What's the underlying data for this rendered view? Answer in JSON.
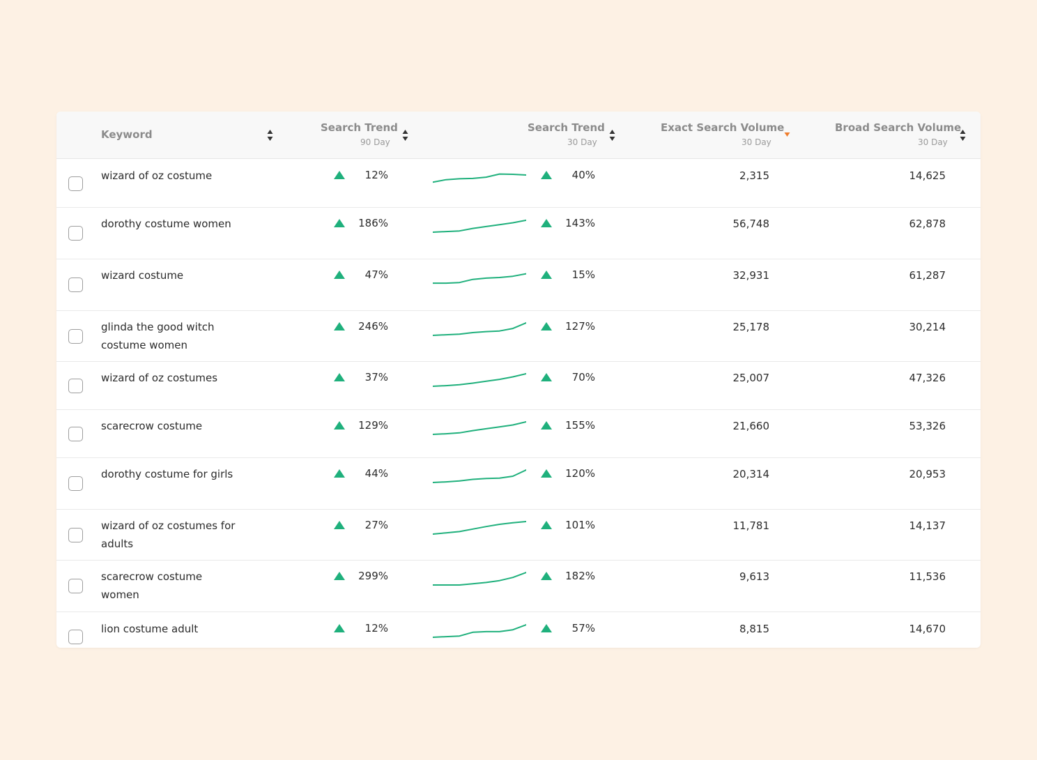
{
  "colors": {
    "accent_green": "#1fb07c",
    "sort_active": "#ef7d2c",
    "background": "#fdf1e4"
  },
  "header": {
    "keyword": "Keyword",
    "trend90": {
      "title": "Search Trend",
      "sub": "90 Day"
    },
    "trend30": {
      "title": "Search Trend",
      "sub": "30 Day"
    },
    "exact": {
      "title": "Exact Search Volume",
      "sub": "30 Day"
    },
    "broad": {
      "title": "Broad Search Volume",
      "sub": "30 Day"
    },
    "sort_icons": [
      "sort-both-icon",
      "sort-both-icon",
      "sort-both-icon",
      "sort-desc-active-icon",
      "sort-both-icon"
    ]
  },
  "rows": [
    {
      "keyword": "wizard of oz costume",
      "trend90": "12%",
      "trend30": "40%",
      "exact": "2,315",
      "broad": "14,625",
      "spark": [
        0.15,
        0.35,
        0.42,
        0.45,
        0.55,
        0.8,
        0.78,
        0.72
      ]
    },
    {
      "keyword": "dorothy costume women",
      "trend90": "186%",
      "trend30": "143%",
      "exact": "56,748",
      "broad": "62,878",
      "spark": [
        0.0,
        0.05,
        0.1,
        0.3,
        0.45,
        0.6,
        0.75,
        0.95
      ]
    },
    {
      "keyword": "wizard costume",
      "trend90": "47%",
      "trend30": "15%",
      "exact": "32,931",
      "broad": "61,287",
      "spark": [
        0.05,
        0.05,
        0.1,
        0.35,
        0.45,
        0.5,
        0.6,
        0.8
      ]
    },
    {
      "keyword": "glinda the good witch costume women",
      "trend90": "246%",
      "trend30": "127%",
      "exact": "25,178",
      "broad": "30,214",
      "spark": [
        0.0,
        0.05,
        0.1,
        0.22,
        0.3,
        0.35,
        0.55,
        1.0
      ]
    },
    {
      "keyword": "wizard of oz costumes",
      "trend90": "37%",
      "trend30": "70%",
      "exact": "25,007",
      "broad": "47,326",
      "spark": [
        0.0,
        0.05,
        0.12,
        0.25,
        0.4,
        0.55,
        0.75,
        1.0
      ]
    },
    {
      "keyword": "scarecrow costume",
      "trend90": "129%",
      "trend30": "155%",
      "exact": "21,660",
      "broad": "53,326",
      "spark": [
        0.0,
        0.05,
        0.12,
        0.3,
        0.45,
        0.6,
        0.75,
        1.0
      ]
    },
    {
      "keyword": "dorothy costume for girls",
      "trend90": "44%",
      "trend30": "120%",
      "exact": "20,314",
      "broad": "20,953",
      "spark": [
        0.0,
        0.05,
        0.12,
        0.25,
        0.32,
        0.35,
        0.5,
        1.0
      ]
    },
    {
      "keyword": "wizard of oz costumes for adults",
      "trend90": "27%",
      "trend30": "101%",
      "exact": "11,781",
      "broad": "14,137",
      "spark": [
        0.0,
        0.1,
        0.2,
        0.4,
        0.6,
        0.78,
        0.9,
        1.0
      ]
    },
    {
      "keyword": "scarecrow costume women",
      "trend90": "299%",
      "trend30": "182%",
      "exact": "9,613",
      "broad": "11,536",
      "spark": [
        0.0,
        0.0,
        0.0,
        0.1,
        0.2,
        0.35,
        0.6,
        1.0
      ]
    },
    {
      "keyword": "lion costume adult",
      "trend90": "12%",
      "trend30": "57%",
      "exact": "8,815",
      "broad": "14,670",
      "spark": [
        0.0,
        0.05,
        0.1,
        0.4,
        0.45,
        0.45,
        0.6,
        1.0
      ]
    }
  ]
}
